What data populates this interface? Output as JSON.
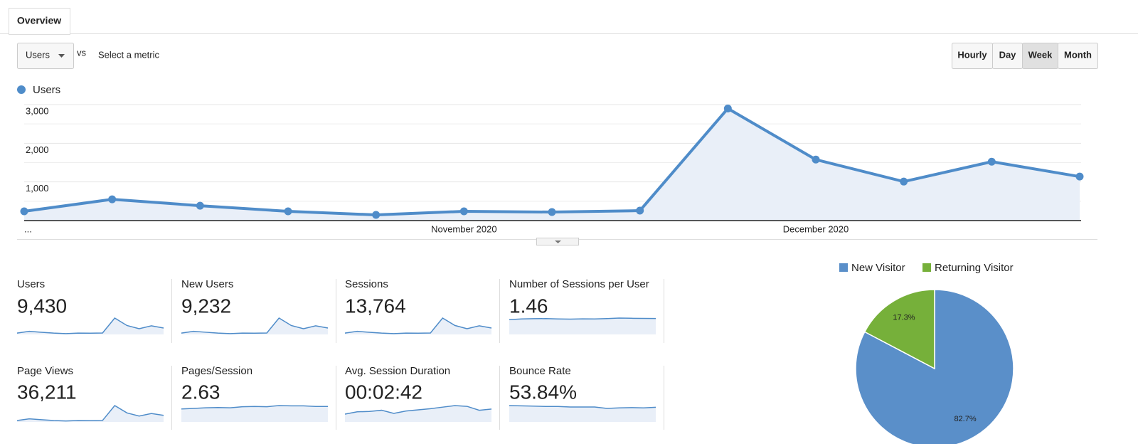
{
  "tabs": [
    "Overview"
  ],
  "controls": {
    "metric": "Users",
    "vs": "vs",
    "compare": "Select a metric",
    "periods": [
      "Hourly",
      "Day",
      "Week",
      "Month"
    ],
    "active_period": 2
  },
  "chart_data": [
    {
      "type": "line",
      "categories": [
        "...",
        null,
        null,
        null,
        null,
        "November 2020",
        null,
        null,
        null,
        "December 2020",
        null,
        null,
        null
      ],
      "series": [
        {
          "name": "Users",
          "color": "#4f8cc9",
          "values": [
            239,
            550,
            385,
            239,
            147,
            239,
            220,
            257,
            2899,
            1578,
            1009,
            1523,
            1138
          ]
        }
      ],
      "ylim": [
        0,
        3000
      ],
      "yticks": [
        {
          "value": 1000,
          "label": "1,000"
        },
        {
          "value": 2000,
          "label": "2,000"
        },
        {
          "value": 3000,
          "label": "3,000"
        }
      ],
      "minor_yticks": [
        500,
        1500,
        2500
      ],
      "grid": true
    },
    {
      "type": "pie",
      "categories": [
        "New Visitor",
        "Returning Visitor"
      ],
      "values": [
        82.7,
        17.3
      ],
      "value_labels": [
        "82.7%",
        "17.3%"
      ],
      "colors": [
        "#5a8fc9",
        "#76b03a"
      ],
      "legend": "top"
    }
  ],
  "scorecards": [
    {
      "name": "Users",
      "value": "9,430",
      "sparkline": [
        239,
        550,
        385,
        239,
        147,
        239,
        220,
        257,
        2899,
        1578,
        1009,
        1523,
        1138
      ]
    },
    {
      "name": "New Users",
      "value": "9,232",
      "sparkline": [
        235,
        540,
        378,
        234,
        144,
        234,
        216,
        252,
        2840,
        1546,
        989,
        1493,
        1115
      ]
    },
    {
      "name": "Sessions",
      "value": "13,764",
      "sparkline": [
        330,
        780,
        540,
        330,
        200,
        330,
        305,
        360,
        4100,
        2250,
        1430,
        2150,
        1600
      ]
    },
    {
      "name": "Number of Sessions per User",
      "value": "1.46",
      "sparkline": [
        1.35,
        1.42,
        1.44,
        1.45,
        1.42,
        1.4,
        1.43,
        1.42,
        1.45,
        1.5,
        1.48,
        1.47,
        1.46
      ]
    },
    {
      "name": "Page Views",
      "value": "36,211",
      "sparkline": [
        900,
        2000,
        1400,
        900,
        600,
        900,
        850,
        950,
        10500,
        5800,
        3800,
        5400,
        4200
      ]
    },
    {
      "name": "Pages/Session",
      "value": "2.63",
      "sparkline": [
        2.3,
        2.4,
        2.5,
        2.55,
        2.5,
        2.7,
        2.75,
        2.7,
        2.9,
        2.85,
        2.85,
        2.75,
        2.75
      ]
    },
    {
      "name": "Avg. Session Duration",
      "value": "00:02:42",
      "sparkline": [
        100,
        130,
        135,
        150,
        110,
        140,
        155,
        170,
        190,
        210,
        200,
        150,
        165
      ]
    },
    {
      "name": "Bounce Rate",
      "value": "53.84%",
      "sparkline": [
        57,
        56,
        55,
        54,
        54,
        52,
        52,
        52,
        47,
        49,
        50,
        49,
        51
      ]
    }
  ]
}
